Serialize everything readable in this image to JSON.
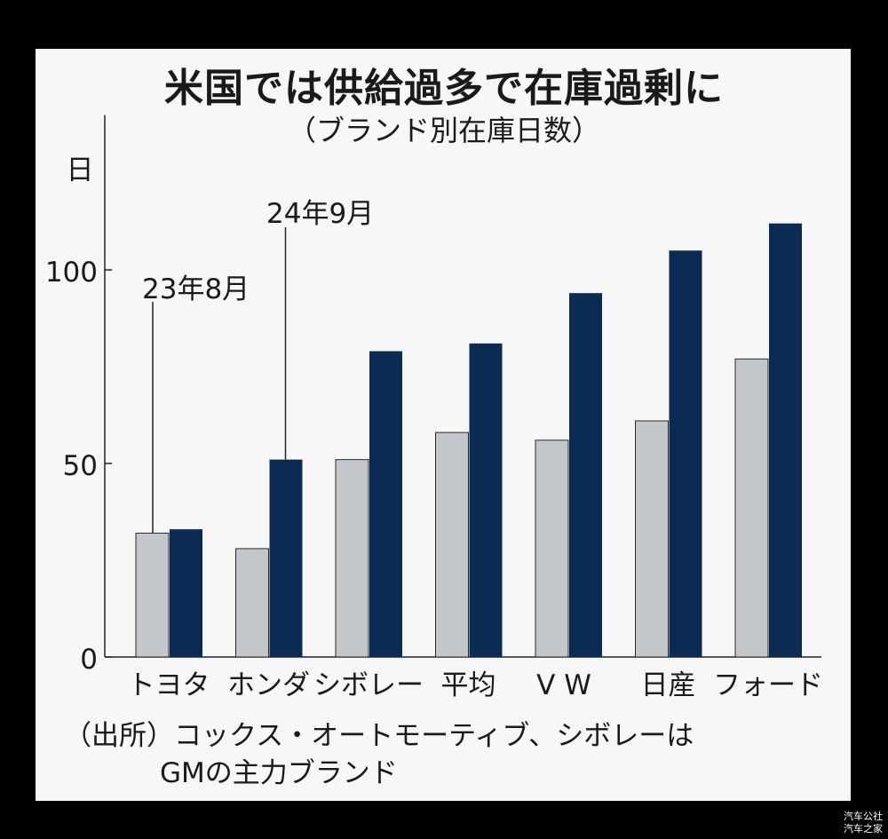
{
  "title": "米国では供給過多で在庫過剰に",
  "subtitle": "（ブランド別在庫日数）",
  "chart_data": {
    "type": "bar",
    "categories": [
      "トヨタ",
      "ホンダ",
      "シボレー",
      "平均",
      "VW",
      "日産",
      "フォード"
    ],
    "series": [
      {
        "name": "23年8月",
        "values": [
          32,
          28,
          51,
          58,
          56,
          61,
          77
        ]
      },
      {
        "name": "24年9月",
        "values": [
          33,
          51,
          79,
          81,
          94,
          105,
          112
        ]
      }
    ],
    "ylabel": "日",
    "yticks": [
      0,
      50,
      100
    ],
    "ylim": [
      0,
      140
    ],
    "colors": {
      "23年8月": "#c3c7cb",
      "24年9月": "#0b2b52"
    },
    "legend": "annotation callouts"
  },
  "source": {
    "line1": "（出所）コックス・オートモーティブ、シボレーは",
    "line2": "GMの主力ブランド"
  },
  "watermark": {
    "line1": "汽车公社",
    "line2": "汽车之家"
  }
}
